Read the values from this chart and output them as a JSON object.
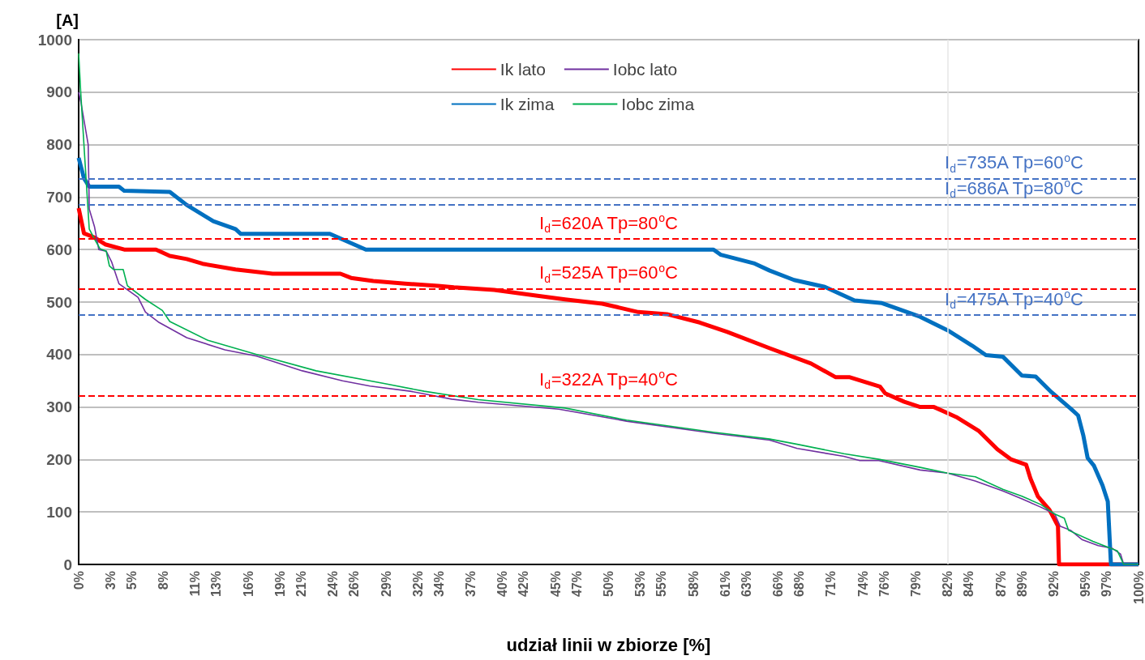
{
  "chart_data": {
    "type": "line",
    "xlabel": "udział linii w zbiorze [%]",
    "ylabel": "[A]",
    "xlim": [
      0,
      100
    ],
    "xticks": [
      {
        "value": 0,
        "label": "0%"
      },
      {
        "value": 3,
        "label": "3%"
      },
      {
        "value": 5,
        "label": "5%"
      },
      {
        "value": 8,
        "label": "8%"
      },
      {
        "value": 11,
        "label": "11%"
      },
      {
        "value": 13,
        "label": "13%"
      },
      {
        "value": 16,
        "label": "16%"
      },
      {
        "value": 19,
        "label": "19%"
      },
      {
        "value": 21,
        "label": "21%"
      },
      {
        "value": 24,
        "label": "24%"
      },
      {
        "value": 26,
        "label": "26%"
      },
      {
        "value": 29,
        "label": "29%"
      },
      {
        "value": 32,
        "label": "32%"
      },
      {
        "value": 34,
        "label": "34%"
      },
      {
        "value": 37,
        "label": "37%"
      },
      {
        "value": 40,
        "label": "40%"
      },
      {
        "value": 42,
        "label": "42%"
      },
      {
        "value": 45,
        "label": "45%"
      },
      {
        "value": 47,
        "label": "47%"
      },
      {
        "value": 50,
        "label": "50%"
      },
      {
        "value": 53,
        "label": "53%"
      },
      {
        "value": 55,
        "label": "55%"
      },
      {
        "value": 58,
        "label": "58%"
      },
      {
        "value": 61,
        "label": "61%"
      },
      {
        "value": 63,
        "label": "63%"
      },
      {
        "value": 66,
        "label": "66%"
      },
      {
        "value": 68,
        "label": "68%"
      },
      {
        "value": 71,
        "label": "71%"
      },
      {
        "value": 74,
        "label": "74%"
      },
      {
        "value": 76,
        "label": "76%"
      },
      {
        "value": 79,
        "label": "79%"
      },
      {
        "value": 82,
        "label": "82%"
      },
      {
        "value": 84,
        "label": "84%"
      },
      {
        "value": 87,
        "label": "87%"
      },
      {
        "value": 89,
        "label": "89%"
      },
      {
        "value": 92,
        "label": "92%"
      },
      {
        "value": 95,
        "label": "95%"
      },
      {
        "value": 97,
        "label": "97%"
      },
      {
        "value": 100,
        "label": "100%"
      }
    ],
    "ylim": [
      0,
      1000
    ],
    "yticks": [
      0,
      100,
      200,
      300,
      400,
      500,
      600,
      700,
      800,
      900,
      1000
    ],
    "grid": "y",
    "legend": "top",
    "marker": "none",
    "line_style": "solid",
    "series": [
      {
        "name": "Ik lato",
        "color": "#ff0000",
        "x": [
          0,
          0.5,
          1.5,
          2.5,
          4.3,
          7.3,
          8.6,
          10.2,
          11.7,
          14.8,
          18.3,
          24.7,
          25.7,
          27.8,
          30.8,
          33.9,
          35.4,
          39.2,
          43.3,
          45.9,
          49.4,
          52.8,
          55.5,
          58.6,
          61.2,
          65.2,
          69.1,
          71.4,
          72.7,
          75.6,
          76.1,
          77.9,
          79.4,
          80.7,
          82.8,
          84.9,
          86.7,
          88.0,
          89.4,
          89.8,
          90.5,
          91.6,
          92.4,
          92.5,
          100
        ],
        "values": [
          679,
          631,
          623,
          610,
          600,
          600,
          588,
          582,
          573,
          562,
          554,
          554,
          546,
          540,
          535,
          531,
          528,
          523,
          512,
          505,
          497,
          481,
          477,
          461,
          443,
          412,
          383,
          357,
          357,
          339,
          326,
          310,
          300,
          300,
          281,
          255,
          219,
          200,
          190,
          164,
          130,
          104,
          73,
          0,
          0
        ]
      },
      {
        "name": "Iobc lato",
        "color": "#7030a0",
        "x": [
          0,
          0.2,
          0.9,
          1.0,
          1.5,
          1.9,
          2.6,
          3.1,
          3.8,
          5.6,
          6.3,
          7.6,
          10.2,
          13.8,
          16.8,
          21.1,
          24.9,
          27.5,
          31.3,
          35.2,
          37.7,
          45.3,
          51.7,
          59.9,
          65.2,
          67.8,
          72.2,
          73.7,
          75.5,
          79.4,
          82.0,
          84.6,
          87.2,
          89.0,
          90.8,
          92.1,
          92.6,
          93.6,
          94.7,
          96.2,
          97.5,
          98.3,
          98.6,
          100
        ],
        "values": [
          900,
          882,
          800,
          677,
          643,
          600,
          597,
          577,
          535,
          509,
          481,
          461,
          432,
          409,
          397,
          369,
          350,
          340,
          330,
          315,
          309,
          296,
          273,
          250,
          237,
          221,
          206,
          198,
          198,
          180,
          174,
          159,
          140,
          125,
          109,
          96,
          73,
          65,
          47,
          36,
          31,
          20,
          0,
          0
        ]
      },
      {
        "name": "Ik zima",
        "color": "#0070c0",
        "x": [
          0,
          0.5,
          1.0,
          3.8,
          4.3,
          8.6,
          10.2,
          12.7,
          14.8,
          15.3,
          23.7,
          27.1,
          59.9,
          60.6,
          63.7,
          65.2,
          67.5,
          70.4,
          73.2,
          75.8,
          79.4,
          82.0,
          84.3,
          85.6,
          87.2,
          89.0,
          90.3,
          91.8,
          93.6,
          94.3,
          94.8,
          95.2,
          95.8,
          96.6,
          97.1,
          97.4,
          100
        ],
        "values": [
          775,
          736,
          720,
          720,
          712,
          710,
          685,
          654,
          639,
          630,
          630,
          600,
          600,
          590,
          574,
          560,
          542,
          529,
          503,
          498,
          472,
          446,
          417,
          399,
          396,
          360,
          358,
          328,
          297,
          284,
          245,
          203,
          188,
          151,
          120,
          0,
          0
        ]
      },
      {
        "name": "Iobc zima",
        "color": "#00b050",
        "x": [
          0,
          0.2,
          0.6,
          1.0,
          1.5,
          2.0,
          2.6,
          2.9,
          3.3,
          4.2,
          4.6,
          6.3,
          7.9,
          8.6,
          12.2,
          16.8,
          22.4,
          28.8,
          32.6,
          37.7,
          45.9,
          51.7,
          59.9,
          65.2,
          67.8,
          72.2,
          75.6,
          79.4,
          82.0,
          84.6,
          87.2,
          89.0,
          90.8,
          92.1,
          93.0,
          93.4,
          95.7,
          98.0,
          98.6,
          100
        ],
        "values": [
          974,
          898,
          767,
          639,
          620,
          602,
          597,
          569,
          562,
          562,
          531,
          505,
          484,
          463,
          427,
          400,
          369,
          345,
          330,
          314,
          298,
          275,
          252,
          239,
          229,
          211,
          200,
          185,
          174,
          167,
          143,
          130,
          114,
          96,
          88,
          65,
          44,
          26,
          0,
          0
        ]
      }
    ],
    "ref_lines": [
      {
        "axis": "y",
        "value": 735,
        "label": "I$_{d}$=735A Tp=60$^{o}$C",
        "color": "#4472c4",
        "line_style": "dashed"
      },
      {
        "axis": "y",
        "value": 686,
        "label": "I$_{d}$=686A Tp=80$^{o}$C",
        "color": "#4472c4",
        "line_style": "dashed"
      },
      {
        "axis": "y",
        "value": 475,
        "label": "I$_{d}$=475A Tp=40$^{o}$C",
        "color": "#4472c4",
        "line_style": "dashed"
      },
      {
        "axis": "y",
        "value": 620,
        "label": "I$_{d}$=620A Tp=80$^{o}$C",
        "color": "#ff0000",
        "line_style": "dashed"
      },
      {
        "axis": "y",
        "value": 525,
        "label": "I$_{d}$=525A Tp=60$^{o}$C",
        "color": "#ff0000",
        "line_style": "dashed"
      },
      {
        "axis": "y",
        "value": 322,
        "label": "I$_{d}$=322A Tp=40$^{o}$C",
        "color": "#ff0000",
        "line_style": "dashed"
      },
      {
        "axis": "x",
        "value": 82,
        "color": "#e6e6e6",
        "line_style": "solid"
      }
    ]
  }
}
